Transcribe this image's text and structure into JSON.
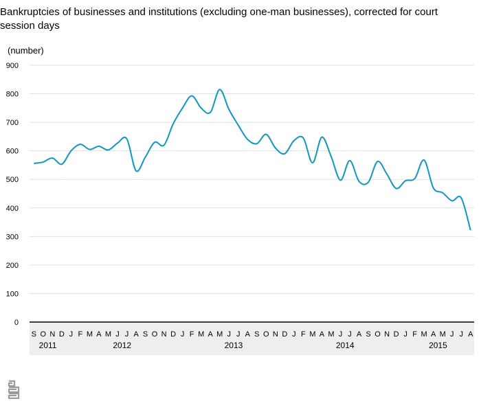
{
  "chart_data": {
    "type": "line",
    "title": "Bankruptcies of businesses and institutions (excluding one-man businesses), corrected for court session days",
    "ylabel": "(number)",
    "xlabel": "",
    "ylim": [
      0,
      900
    ],
    "yticks": [
      "0",
      "100",
      "200",
      "300",
      "400",
      "500",
      "600",
      "700",
      "800",
      "900"
    ],
    "grid": true,
    "legend": "none",
    "months": [
      "S",
      "O",
      "N",
      "D",
      "J",
      "F",
      "M",
      "A",
      "M",
      "J",
      "J",
      "A",
      "S",
      "O",
      "N",
      "D",
      "J",
      "F",
      "M",
      "A",
      "M",
      "J",
      "J",
      "A",
      "S",
      "O",
      "N",
      "D",
      "J",
      "F",
      "M",
      "A",
      "M",
      "J",
      "J",
      "A",
      "S",
      "O",
      "N",
      "D",
      "J",
      "F",
      "M",
      "A",
      "M",
      "J",
      "J",
      "A"
    ],
    "years": [
      {
        "label": "2011",
        "start": 0,
        "end": 4
      },
      {
        "label": "2012",
        "start": 4,
        "end": 16
      },
      {
        "label": "2013",
        "start": 16,
        "end": 28
      },
      {
        "label": "2014",
        "start": 28,
        "end": 40
      },
      {
        "label": "2015",
        "start": 40,
        "end": 48
      }
    ],
    "series": [
      {
        "values": [
          556,
          561,
          575,
          553,
          600,
          623,
          605,
          616,
          603,
          627,
          642,
          530,
          578,
          630,
          620,
          695,
          750,
          793,
          750,
          735,
          815,
          745,
          690,
          640,
          625,
          658,
          610,
          590,
          636,
          645,
          558,
          648,
          580,
          497,
          566,
          493,
          490,
          563,
          518,
          468,
          495,
          503,
          568,
          470,
          453,
          425,
          435,
          322
        ],
        "color": "#0d98c1"
      }
    ]
  }
}
